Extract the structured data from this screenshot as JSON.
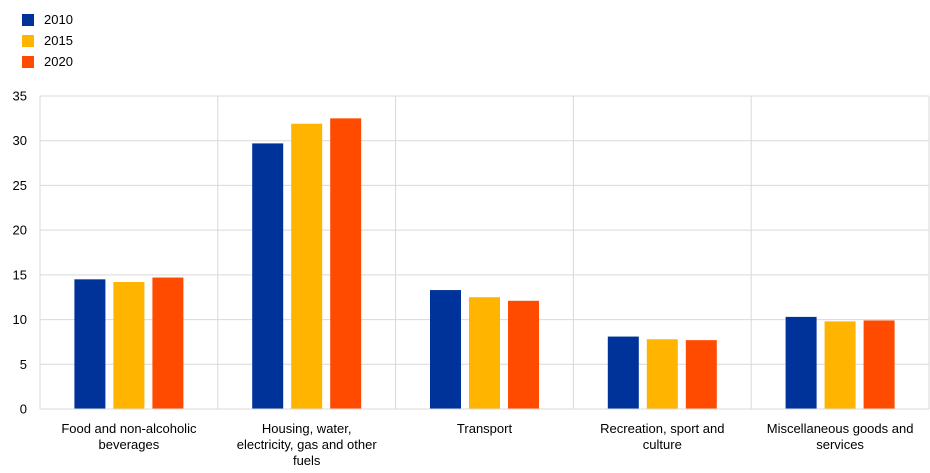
{
  "chart_data": {
    "type": "bar",
    "title": "",
    "xlabel": "",
    "ylabel": "",
    "categories": [
      [
        "Food and non-alcoholic",
        "beverages"
      ],
      [
        "Housing, water,",
        "electricity, gas and other",
        "fuels"
      ],
      [
        "Transport"
      ],
      [
        "Recreation, sport and",
        "culture"
      ],
      [
        "Miscellaneous goods and",
        "services"
      ]
    ],
    "series": [
      {
        "name": "2010",
        "color": "#003399",
        "values": [
          14.5,
          29.7,
          13.3,
          8.1,
          10.3
        ]
      },
      {
        "name": "2015",
        "color": "#FFB400",
        "values": [
          14.2,
          31.9,
          12.5,
          7.8,
          9.8
        ]
      },
      {
        "name": "2020",
        "color": "#FF4B00",
        "values": [
          14.7,
          32.5,
          12.1,
          7.7,
          9.9
        ]
      }
    ],
    "ylim": [
      0,
      35
    ],
    "yticks": [
      0,
      5,
      10,
      15,
      20,
      25,
      30,
      35
    ],
    "grid": true,
    "legend_position": "top-left"
  }
}
